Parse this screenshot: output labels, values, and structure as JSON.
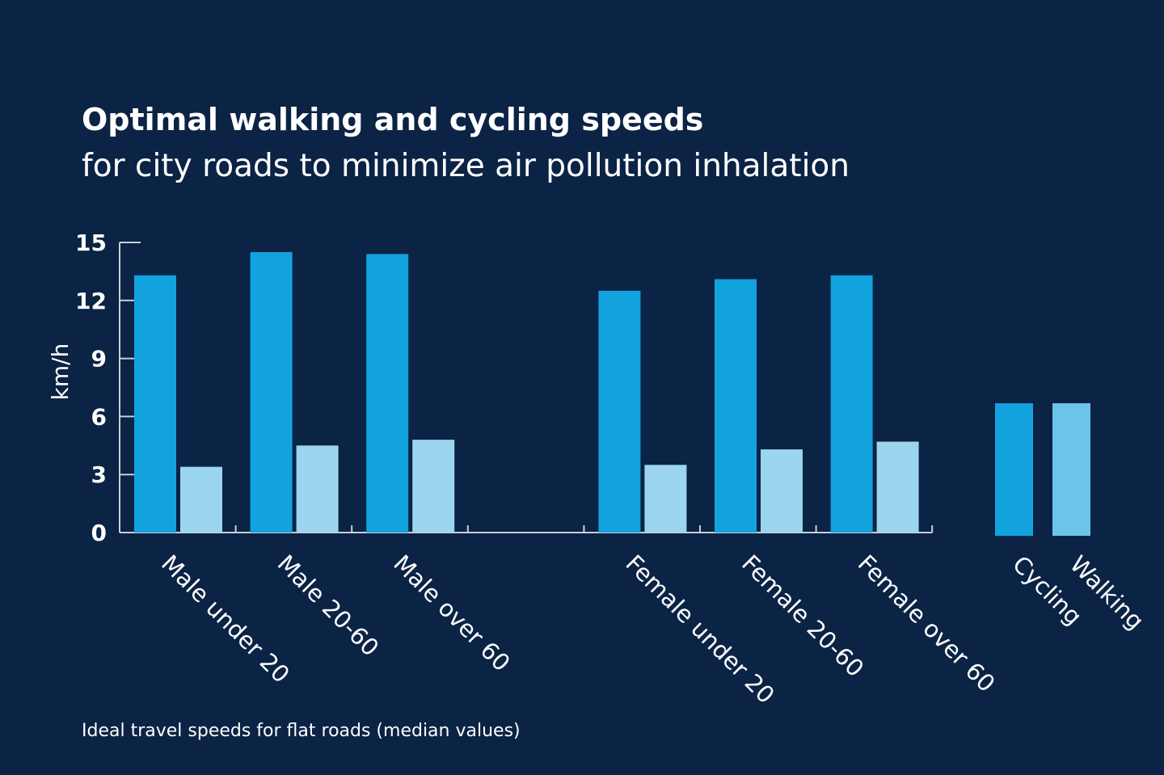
{
  "title": "Optimal  walking and cycling speeds",
  "subtitle": "for city roads to minimize air pollution inhalation",
  "footnote": "Ideal travel speeds for flat roads (median values)",
  "colors": {
    "background": "#0b2344",
    "cycling": "#12a3df",
    "walking": "#9bd5ee",
    "legend_walking": "#6cc4ea",
    "axis": "#c8cfdb"
  },
  "chart_data": {
    "type": "bar",
    "title": "Optimal  walking and cycling speeds",
    "ylabel": "km/h",
    "ylim": [
      0,
      15
    ],
    "yticks": [
      "0",
      "3",
      "6",
      "9",
      "12",
      "15"
    ],
    "categories": [
      "Male under 20",
      "Male 20-60",
      "Male over 60",
      "Female under 20",
      "Female 20-60",
      "Female over 60"
    ],
    "series": [
      {
        "name": "Cycling",
        "values": [
          13.3,
          14.5,
          14.4,
          12.5,
          13.1,
          13.3
        ]
      },
      {
        "name": "Walking",
        "values": [
          3.4,
          4.5,
          4.8,
          3.5,
          4.3,
          4.7
        ]
      }
    ],
    "legend": {
      "placement": "right",
      "entries": [
        "Cycling",
        "Walking"
      ]
    },
    "grid": false
  }
}
